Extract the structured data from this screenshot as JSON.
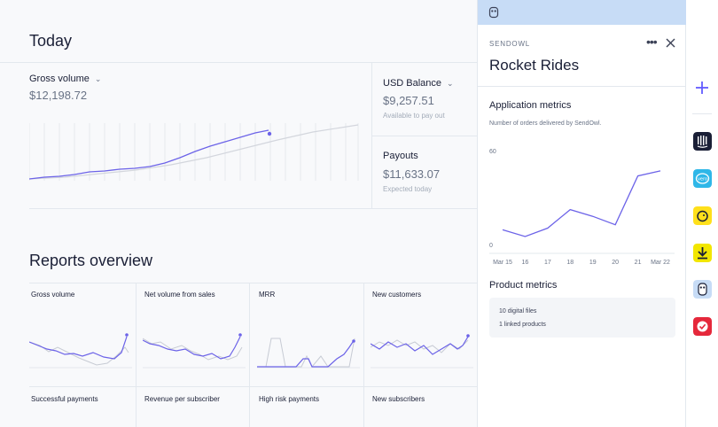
{
  "dashboard": {
    "today_title": "Today",
    "gross_volume": {
      "label": "Gross volume",
      "value": "$12,198.72"
    },
    "usd_balance": {
      "label": "USD Balance",
      "value": "$9,257.51",
      "sub": "Available to pay out"
    },
    "payouts": {
      "label": "Payouts",
      "value": "$11,633.07",
      "sub": "Expected today"
    },
    "reports_title": "Reports overview",
    "reports": [
      {
        "label": "Gross volume"
      },
      {
        "label": "Net volume from sales"
      },
      {
        "label": "MRR"
      },
      {
        "label": "New customers"
      },
      {
        "label": "Successful payments"
      },
      {
        "label": "Revenue per subscriber"
      },
      {
        "label": "High risk payments"
      },
      {
        "label": "New subscribers"
      }
    ]
  },
  "panel": {
    "eyebrow": "SENDOWL",
    "title": "Rocket Rides",
    "app_metrics_title": "Application metrics",
    "app_metrics_desc": "Number of orders delivered by SendOwl.",
    "product_metrics_title": "Product metrics",
    "product_lines": [
      "10 digital files",
      "1 linked products"
    ]
  },
  "chart_data": {
    "type": "line",
    "title": "",
    "x": [
      "Mar 15",
      "16",
      "17",
      "18",
      "19",
      "20",
      "21",
      "Mar 22"
    ],
    "series": [
      {
        "values": [
          14,
          10,
          15,
          26,
          22,
          17,
          46,
          49
        ]
      }
    ],
    "ylim": [
      0,
      60
    ],
    "y_ticks": [
      "0",
      "60"
    ],
    "grid": false
  },
  "colors": {
    "accent": "#6c63e8",
    "compare_line": "#c7cbd4",
    "panel_header": "#c7dcf6",
    "border": "#e3e8ee"
  },
  "rail": {
    "add_icon": "plus-icon",
    "apps": [
      "intercom-icon",
      "vero-icon",
      "mailchimp-icon",
      "download-app-icon",
      "sendowl-icon",
      "task-app-icon"
    ]
  }
}
